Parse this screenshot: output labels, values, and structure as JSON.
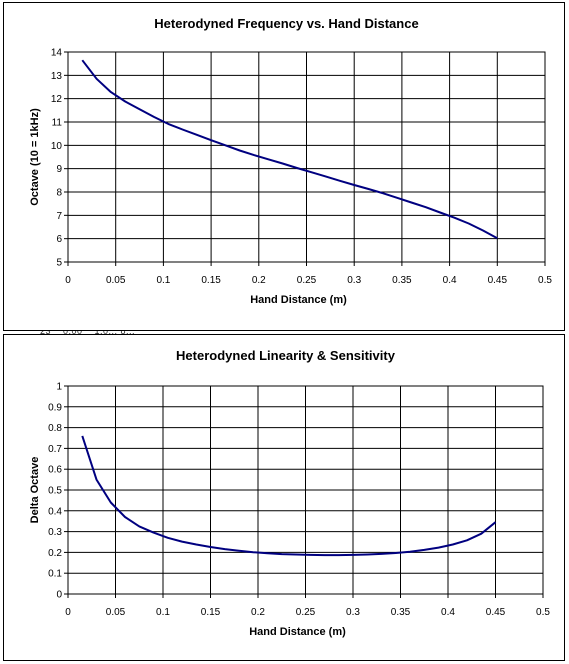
{
  "chart_data": [
    {
      "type": "line",
      "title": "Heterodyned Frequency vs. Hand Distance",
      "xlabel": "Hand Distance (m)",
      "ylabel": "Octave (10 = 1kHz)",
      "xlim": [
        0,
        0.5
      ],
      "ylim": [
        5,
        14
      ],
      "x_ticks": [
        "0",
        "0.05",
        "0.1",
        "0.15",
        "0.2",
        "0.25",
        "0.3",
        "0.35",
        "0.4",
        "0.45",
        "0.5"
      ],
      "y_ticks": [
        "5",
        "6",
        "7",
        "8",
        "9",
        "10",
        "11",
        "12",
        "13",
        "14"
      ],
      "grid": true,
      "line_color": "#000080",
      "series": [
        {
          "x": [
            0.015,
            0.03,
            0.045,
            0.06,
            0.075,
            0.09,
            0.105,
            0.12,
            0.135,
            0.15,
            0.165,
            0.18,
            0.195,
            0.21,
            0.225,
            0.24,
            0.255,
            0.27,
            0.285,
            0.3,
            0.315,
            0.33,
            0.345,
            0.36,
            0.375,
            0.39,
            0.405,
            0.42,
            0.435,
            0.45
          ],
          "values": [
            13.65,
            12.85,
            12.28,
            11.88,
            11.55,
            11.22,
            10.92,
            10.68,
            10.45,
            10.22,
            10.0,
            9.78,
            9.58,
            9.4,
            9.22,
            9.03,
            8.85,
            8.67,
            8.48,
            8.3,
            8.13,
            7.95,
            7.75,
            7.55,
            7.35,
            7.12,
            6.9,
            6.65,
            6.35,
            6.02
          ]
        }
      ]
    },
    {
      "type": "line",
      "title": "Heterodyned Linearity & Sensitivity",
      "xlabel": "Hand Distance (m)",
      "ylabel": "Delta Octave",
      "xlim": [
        0,
        0.5
      ],
      "ylim": [
        0,
        1
      ],
      "x_ticks": [
        "0",
        "0.05",
        "0.1",
        "0.15",
        "0.2",
        "0.25",
        "0.3",
        "0.35",
        "0.4",
        "0.45",
        "0.5"
      ],
      "y_ticks": [
        "0",
        "0.1",
        "0.2",
        "0.3",
        "0.4",
        "0.5",
        "0.6",
        "0.7",
        "0.8",
        "0.9",
        "1"
      ],
      "grid": true,
      "line_color": "#000080",
      "series": [
        {
          "x": [
            0.015,
            0.03,
            0.045,
            0.06,
            0.075,
            0.09,
            0.105,
            0.12,
            0.135,
            0.15,
            0.165,
            0.18,
            0.195,
            0.21,
            0.225,
            0.24,
            0.255,
            0.27,
            0.285,
            0.3,
            0.315,
            0.33,
            0.345,
            0.36,
            0.375,
            0.39,
            0.405,
            0.42,
            0.435,
            0.45
          ],
          "values": [
            0.76,
            0.55,
            0.44,
            0.37,
            0.325,
            0.295,
            0.27,
            0.252,
            0.238,
            0.226,
            0.216,
            0.208,
            0.201,
            0.196,
            0.192,
            0.19,
            0.188,
            0.187,
            0.187,
            0.188,
            0.19,
            0.193,
            0.197,
            0.203,
            0.212,
            0.223,
            0.238,
            0.258,
            0.29,
            0.345
          ]
        }
      ]
    }
  ],
  "behind_text": "23    0.00    1.0... 8..."
}
